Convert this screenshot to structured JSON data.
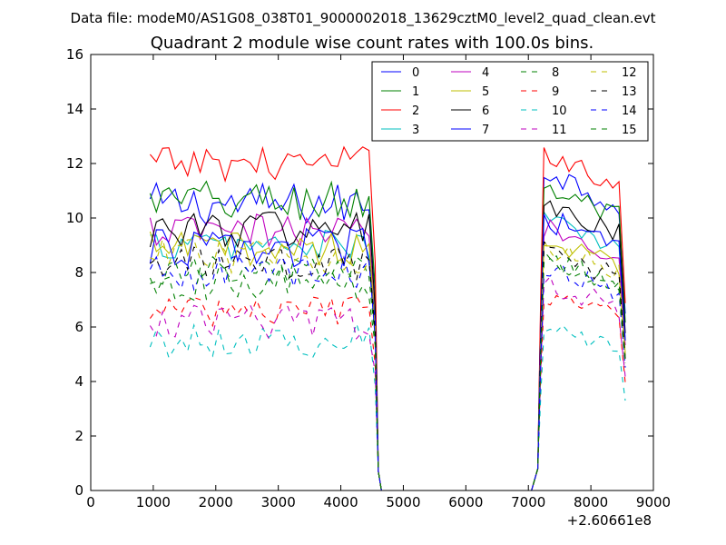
{
  "chart_data": {
    "type": "line",
    "suptitle": "Data file: modeM0/AS1G08_038T01_9000002018_13629cztM0_level2_quad_clean.evt",
    "title": "Quadrant 2 module wise count rates with 100.0s bins.",
    "xlabel": "",
    "ylabel": "",
    "x_offset_label": "+2.60661e8",
    "xlim": [
      0,
      9000
    ],
    "ylim": [
      0,
      16
    ],
    "xticks": [
      0,
      1000,
      2000,
      3000,
      4000,
      5000,
      6000,
      7000,
      8000,
      9000
    ],
    "yticks": [
      0,
      2,
      4,
      6,
      8,
      10,
      12,
      14,
      16
    ],
    "legend_position": "top-right",
    "segments": [
      {
        "x_start": 950,
        "x_end": 4550,
        "step": 100
      },
      {
        "gap": [
          4550,
          7050
        ],
        "value": 0
      },
      {
        "x_start": 7250,
        "x_end": 8550,
        "step": 100
      }
    ],
    "series": [
      {
        "name": "0",
        "color": "#0000ff",
        "dash": "solid",
        "level1": 10.5,
        "level2": 11.8,
        "noise": 0.5
      },
      {
        "name": "1",
        "color": "#008000",
        "dash": "solid",
        "level1": 10.6,
        "level2": 11.2,
        "noise": 0.5
      },
      {
        "name": "2",
        "color": "#ff0000",
        "dash": "solid",
        "level1": 12.0,
        "level2": 12.5,
        "noise": 0.4
      },
      {
        "name": "3",
        "color": "#00bfbf",
        "dash": "solid",
        "level1": 9.0,
        "level2": 10.0,
        "noise": 0.35
      },
      {
        "name": "4",
        "color": "#bf00bf",
        "dash": "solid",
        "level1": 9.5,
        "level2": 9.7,
        "noise": 0.4
      },
      {
        "name": "5",
        "color": "#bfbf00",
        "dash": "solid",
        "level1": 8.9,
        "level2": 9.2,
        "noise": 0.4
      },
      {
        "name": "6",
        "color": "#000000",
        "dash": "solid",
        "level1": 9.6,
        "level2": 10.5,
        "noise": 0.45
      },
      {
        "name": "7",
        "color": "#0000ff",
        "dash": "solid",
        "level1": 8.9,
        "level2": 10.0,
        "noise": 0.45
      },
      {
        "name": "8",
        "color": "#008000",
        "dash": "dashed",
        "level1": 8.0,
        "level2": 8.5,
        "noise": 0.4
      },
      {
        "name": "9",
        "color": "#ff0000",
        "dash": "dashed",
        "level1": 6.6,
        "level2": 7.2,
        "noise": 0.35
      },
      {
        "name": "10",
        "color": "#00bfbf",
        "dash": "dashed",
        "level1": 5.5,
        "level2": 6.0,
        "noise": 0.4
      },
      {
        "name": "11",
        "color": "#bf00bf",
        "dash": "dashed",
        "level1": 6.2,
        "level2": 7.6,
        "noise": 0.4
      },
      {
        "name": "12",
        "color": "#bfbf00",
        "dash": "dashed",
        "level1": 8.6,
        "level2": 9.0,
        "noise": 0.4
      },
      {
        "name": "13",
        "color": "#000000",
        "dash": "dashed",
        "level1": 8.3,
        "level2": 8.8,
        "noise": 0.4
      },
      {
        "name": "14",
        "color": "#0000ff",
        "dash": "dashed",
        "level1": 8.0,
        "level2": 8.2,
        "noise": 0.4
      },
      {
        "name": "15",
        "color": "#008000",
        "dash": "dashed",
        "level1": 7.6,
        "level2": 8.5,
        "noise": 0.4
      }
    ]
  }
}
